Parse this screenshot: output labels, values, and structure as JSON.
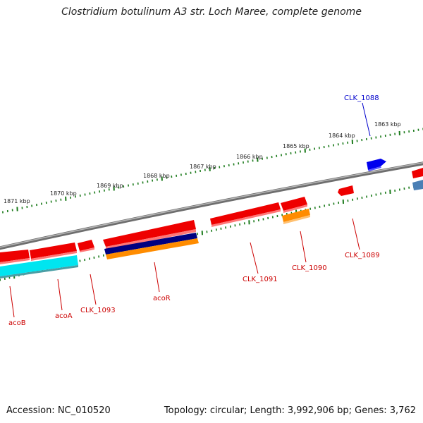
{
  "title": "Clostridium botulinum A3 str. Loch Maree, complete genome",
  "footer": {
    "accession": "Accession: NC_010520",
    "summary": "Topology: circular; Length: 3,992,906 bp; Genes: 3,762"
  },
  "colors": {
    "backbone": "#7a7a7a",
    "gene_red": "#ee0000",
    "gene_blue": "#0000ee",
    "gene_cyan": "#00e5f0",
    "gene_navy": "#000080",
    "gene_orange": "#ff8c00",
    "gene_steel": "#4a7fb5",
    "tick_green": "#1a7a1a",
    "label_red": "#cc0000",
    "label_blue": "#0000cc"
  },
  "ticks": [
    {
      "label": "1871 kbp"
    },
    {
      "label": "1870 kbp"
    },
    {
      "label": "1869 kbp"
    },
    {
      "label": "1868 kbp"
    },
    {
      "label": "1867 kbp"
    },
    {
      "label": "1866 kbp"
    },
    {
      "label": "1865 kbp"
    },
    {
      "label": "1864 kbp"
    },
    {
      "label": "1863 kbp"
    }
  ],
  "labels": [
    {
      "text": "CLK_1088",
      "color": "blue"
    },
    {
      "text": "CLK_1089",
      "color": "red"
    },
    {
      "text": "CLK_1090",
      "color": "red"
    },
    {
      "text": "CLK_1091",
      "color": "red"
    },
    {
      "text": "acoR",
      "color": "red"
    },
    {
      "text": "CLK_1093",
      "color": "red"
    },
    {
      "text": "acoA",
      "color": "red"
    },
    {
      "text": "acoB",
      "color": "red"
    }
  ]
}
